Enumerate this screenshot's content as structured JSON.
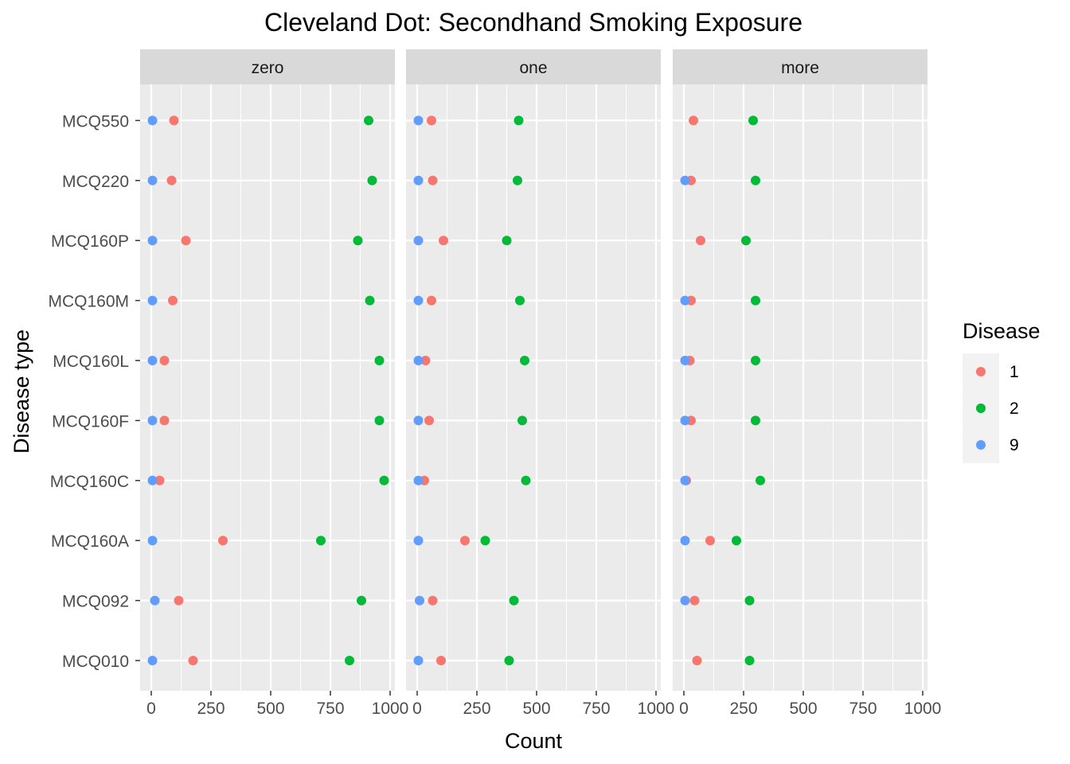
{
  "chart_data": {
    "type": "scatter",
    "title": "Cleveland Dot: Secondhand Smoking Exposure",
    "xlabel": "Count",
    "ylabel": "Disease type",
    "xlim": [
      0,
      1000
    ],
    "x_ticks": [
      "0",
      "250",
      "500",
      "750",
      "1000"
    ],
    "categories": [
      "MCQ010",
      "MCQ092",
      "MCQ160A",
      "MCQ160C",
      "MCQ160F",
      "MCQ160L",
      "MCQ160M",
      "MCQ160P",
      "MCQ220",
      "MCQ550"
    ],
    "facets": [
      "zero",
      "one",
      "more"
    ],
    "legend": {
      "title": "Disease",
      "position": "right",
      "entries": [
        {
          "label": "1",
          "color": "#F8766D"
        },
        {
          "label": "2",
          "color": "#00BA38"
        },
        {
          "label": "9",
          "color": "#619CFF"
        }
      ]
    },
    "grid": true,
    "series": [
      {
        "name": "1",
        "color": "#F8766D",
        "values": {
          "zero": [
            175,
            115,
            300,
            35,
            55,
            55,
            90,
            145,
            85,
            95
          ],
          "one": [
            100,
            65,
            200,
            30,
            50,
            35,
            60,
            110,
            65,
            60
          ],
          "more": [
            55,
            45,
            110,
            10,
            30,
            25,
            30,
            70,
            30,
            40
          ]
        }
      },
      {
        "name": "2",
        "color": "#00BA38",
        "values": {
          "zero": [
            830,
            880,
            710,
            975,
            955,
            955,
            915,
            865,
            925,
            910
          ],
          "one": [
            385,
            405,
            285,
            455,
            440,
            450,
            430,
            375,
            420,
            425
          ],
          "more": [
            275,
            275,
            220,
            320,
            300,
            300,
            300,
            260,
            300,
            290
          ]
        }
      },
      {
        "name": "9",
        "color": "#619CFF",
        "values": {
          "zero": [
            5,
            15,
            5,
            5,
            5,
            5,
            5,
            5,
            5,
            5
          ],
          "one": [
            5,
            10,
            5,
            5,
            5,
            5,
            5,
            5,
            5,
            5
          ],
          "more": [
            null,
            5,
            5,
            5,
            5,
            5,
            5,
            null,
            5,
            null
          ]
        }
      }
    ]
  }
}
